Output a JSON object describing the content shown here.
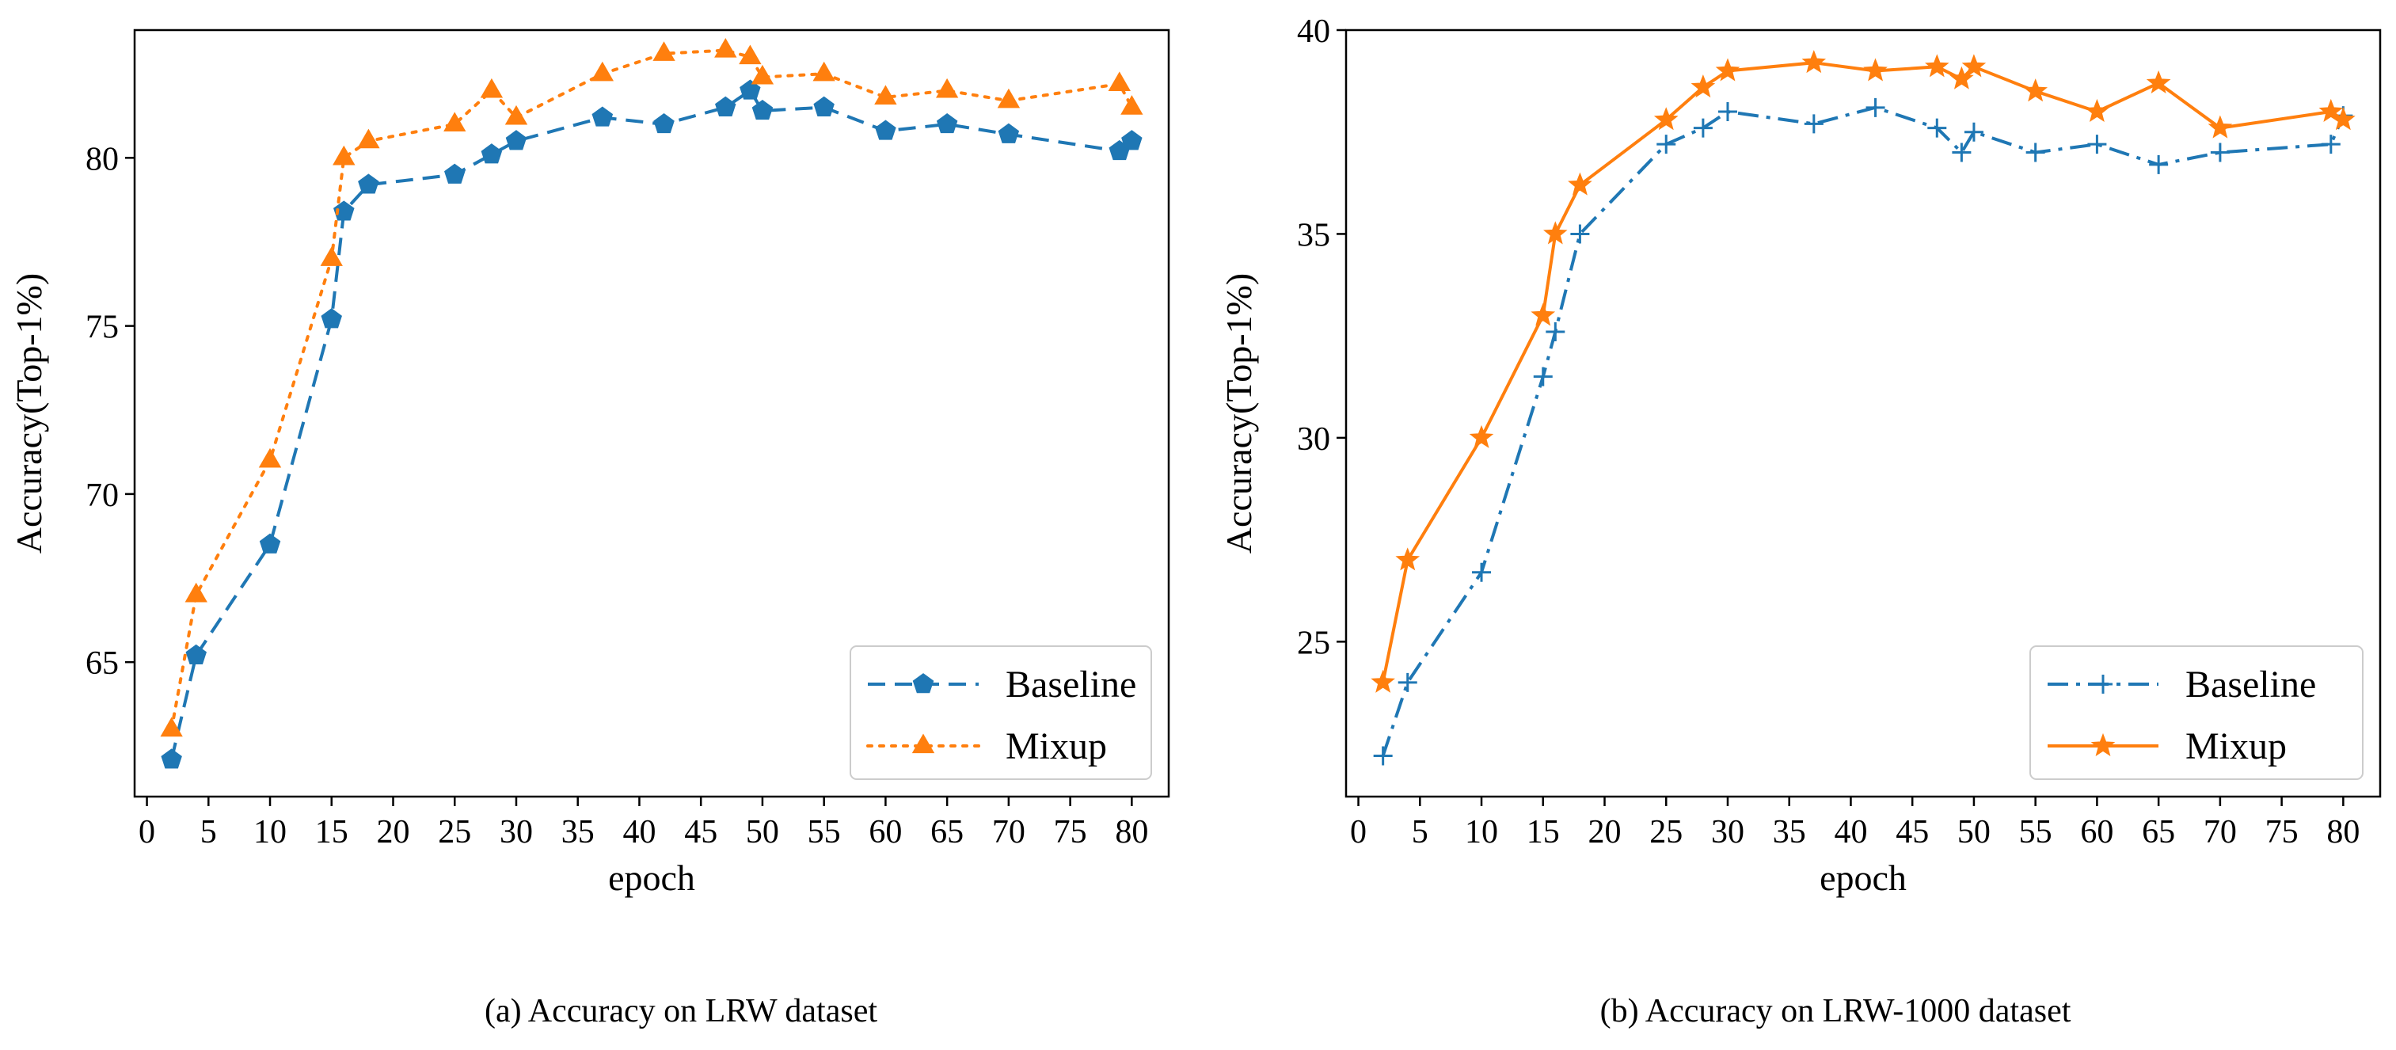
{
  "captions": {
    "a": "(a) Accuracy on LRW dataset",
    "b": "(b) Accuracy on LRW-1000 dataset"
  },
  "colors": {
    "baseline": "#1f77b4",
    "mixup": "#ff7f0e"
  },
  "chart_data": [
    {
      "type": "line",
      "title": "",
      "xlabel": "epoch",
      "ylabel": "Accuracy(Top-1%)",
      "xlim": [
        -1,
        83
      ],
      "ylim": [
        61.0,
        83.8
      ],
      "xticks": [
        0,
        5,
        10,
        15,
        20,
        25,
        30,
        35,
        40,
        45,
        50,
        55,
        60,
        65,
        70,
        75,
        80
      ],
      "yticks": [
        65,
        70,
        75,
        80
      ],
      "grid": false,
      "legend": "lower right",
      "series": [
        {
          "name": "Baseline",
          "style": "dashed",
          "marker": "pentagon",
          "color": "#1f77b4",
          "x": [
            2,
            4,
            10,
            15,
            16,
            18,
            25,
            28,
            30,
            37,
            42,
            47,
            49,
            50,
            55,
            60,
            65,
            70,
            79,
            80
          ],
          "y": [
            62.1,
            65.2,
            68.5,
            75.2,
            78.4,
            79.2,
            79.5,
            80.1,
            80.5,
            81.2,
            81.0,
            81.5,
            82.0,
            81.4,
            81.5,
            80.8,
            81.0,
            80.7,
            80.2,
            80.5
          ]
        },
        {
          "name": "Mixup",
          "style": "dotted",
          "marker": "triangle",
          "color": "#ff7f0e",
          "x": [
            2,
            4,
            10,
            15,
            16,
            18,
            25,
            28,
            30,
            37,
            42,
            47,
            49,
            50,
            55,
            60,
            65,
            70,
            79,
            80
          ],
          "y": [
            63.0,
            67.0,
            71.0,
            77.0,
            80.0,
            80.5,
            81.0,
            82.0,
            81.2,
            82.5,
            83.1,
            83.2,
            83.0,
            82.4,
            82.5,
            81.8,
            82.0,
            81.7,
            82.2,
            81.5
          ]
        }
      ]
    },
    {
      "type": "line",
      "title": "",
      "xlabel": "epoch",
      "ylabel": "Accuracy(Top-1%)",
      "xlim": [
        -1,
        83
      ],
      "ylim": [
        21.2,
        40.0
      ],
      "xticks": [
        0,
        5,
        10,
        15,
        20,
        25,
        30,
        35,
        40,
        45,
        50,
        55,
        60,
        65,
        70,
        75,
        80
      ],
      "yticks": [
        25,
        30,
        35,
        40
      ],
      "grid": false,
      "legend": "lower right",
      "series": [
        {
          "name": "Baseline",
          "style": "dashdot",
          "marker": "plus",
          "color": "#1f77b4",
          "x": [
            2,
            4,
            10,
            15,
            16,
            18,
            25,
            28,
            30,
            37,
            42,
            47,
            49,
            50,
            55,
            60,
            65,
            70,
            79,
            80
          ],
          "y": [
            22.2,
            24.0,
            26.7,
            31.5,
            32.6,
            35.0,
            37.2,
            37.6,
            38.0,
            37.7,
            38.1,
            37.6,
            37.0,
            37.5,
            37.0,
            37.2,
            36.7,
            37.0,
            37.2,
            37.9
          ]
        },
        {
          "name": "Mixup",
          "style": "solid",
          "marker": "star",
          "color": "#ff7f0e",
          "x": [
            2,
            4,
            10,
            15,
            16,
            18,
            25,
            28,
            30,
            37,
            42,
            47,
            49,
            50,
            55,
            60,
            65,
            70,
            79,
            80
          ],
          "y": [
            24.0,
            27.0,
            30.0,
            33.0,
            35.0,
            36.2,
            37.8,
            38.6,
            39.0,
            39.2,
            39.0,
            39.1,
            38.8,
            39.1,
            38.5,
            38.0,
            38.7,
            37.6,
            38.0,
            37.8
          ]
        }
      ]
    }
  ]
}
